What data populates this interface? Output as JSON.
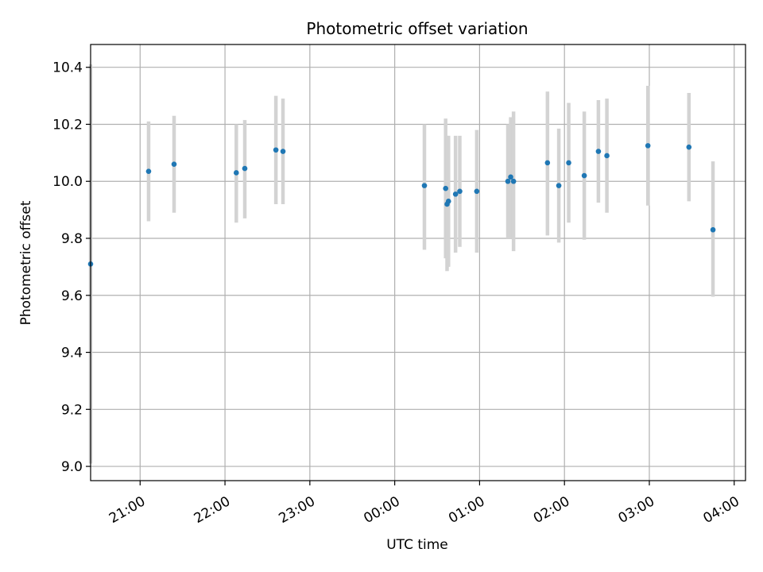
{
  "chart_data": {
    "type": "scatter",
    "title": "Photometric offset variation",
    "xlabel": "UTC time",
    "ylabel": "Photometric offset",
    "grid": true,
    "x_axis": {
      "kind": "time",
      "ticks": [
        "21:00",
        "22:00",
        "23:00",
        "00:00",
        "01:00",
        "02:00",
        "03:00",
        "04:00"
      ],
      "range": [
        "20:25",
        "04:08"
      ]
    },
    "y_axis": {
      "ticks": [
        "9.0",
        "9.2",
        "9.4",
        "9.6",
        "9.8",
        "10.0",
        "10.2",
        "10.4"
      ],
      "ylim": [
        8.95,
        10.48
      ]
    },
    "colors": {
      "point": "#1f77b4",
      "errorbar": "#d3d3d3",
      "grid": "#b0b0b0"
    },
    "points": [
      {
        "x": "20:25",
        "y": 9.71,
        "err_low": 9.01,
        "err_high": 10.41
      },
      {
        "x": "21:06",
        "y": 10.035,
        "err_low": 9.86,
        "err_high": 10.21
      },
      {
        "x": "21:24",
        "y": 10.06,
        "err_low": 9.89,
        "err_high": 10.23
      },
      {
        "x": "22:08",
        "y": 10.03,
        "err_low": 9.855,
        "err_high": 10.2
      },
      {
        "x": "22:14",
        "y": 10.045,
        "err_low": 9.87,
        "err_high": 10.215
      },
      {
        "x": "22:36",
        "y": 10.11,
        "err_low": 9.92,
        "err_high": 10.3
      },
      {
        "x": "22:41",
        "y": 10.105,
        "err_low": 9.92,
        "err_high": 10.29
      },
      {
        "x": "00:21",
        "y": 9.985,
        "err_low": 9.76,
        "err_high": 10.2
      },
      {
        "x": "00:36",
        "y": 9.975,
        "err_low": 9.73,
        "err_high": 10.22
      },
      {
        "x": "00:37",
        "y": 9.92,
        "err_low": 9.685,
        "err_high": 10.16
      },
      {
        "x": "00:38",
        "y": 9.93,
        "err_low": 9.7,
        "err_high": 10.16
      },
      {
        "x": "00:43",
        "y": 9.955,
        "err_low": 9.75,
        "err_high": 10.16
      },
      {
        "x": "00:46",
        "y": 9.965,
        "err_low": 9.77,
        "err_high": 10.16
      },
      {
        "x": "00:58",
        "y": 9.965,
        "err_low": 9.75,
        "err_high": 10.18
      },
      {
        "x": "01:20",
        "y": 10.0,
        "err_low": 9.8,
        "err_high": 10.2
      },
      {
        "x": "01:22",
        "y": 10.015,
        "err_low": 9.8,
        "err_high": 10.225
      },
      {
        "x": "01:24",
        "y": 10.0,
        "err_low": 9.755,
        "err_high": 10.245
      },
      {
        "x": "01:48",
        "y": 10.065,
        "err_low": 9.81,
        "err_high": 10.315
      },
      {
        "x": "01:56",
        "y": 9.985,
        "err_low": 9.785,
        "err_high": 10.185
      },
      {
        "x": "02:03",
        "y": 10.065,
        "err_low": 9.855,
        "err_high": 10.275
      },
      {
        "x": "02:14",
        "y": 10.02,
        "err_low": 9.795,
        "err_high": 10.245
      },
      {
        "x": "02:24",
        "y": 10.105,
        "err_low": 9.925,
        "err_high": 10.285
      },
      {
        "x": "02:30",
        "y": 10.09,
        "err_low": 9.89,
        "err_high": 10.29
      },
      {
        "x": "02:59",
        "y": 10.125,
        "err_low": 9.915,
        "err_high": 10.335
      },
      {
        "x": "03:28",
        "y": 10.12,
        "err_low": 9.93,
        "err_high": 10.31
      },
      {
        "x": "03:45",
        "y": 9.83,
        "err_low": 9.595,
        "err_high": 10.07
      }
    ]
  }
}
